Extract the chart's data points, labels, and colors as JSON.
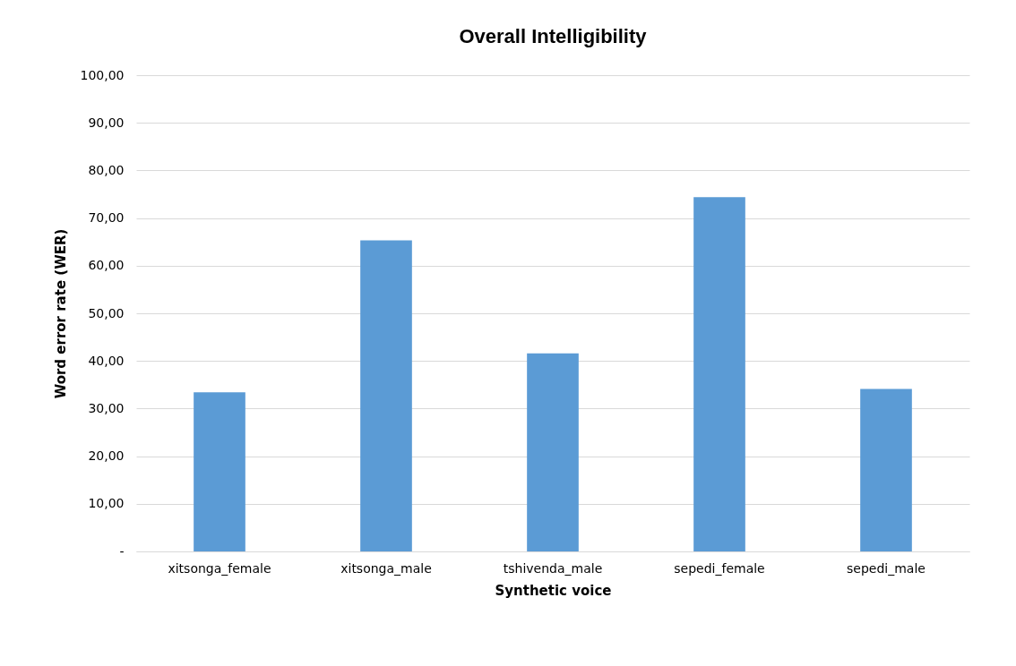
{
  "chart_data": {
    "type": "bar",
    "title": "Overall Intelligibility",
    "xlabel": "Synthetic voice",
    "ylabel": "Word error rate (WER)",
    "categories": [
      "xitsonga_female",
      "xitsonga_male",
      "tshivenda_male",
      "sepedi_female",
      "sepedi_male"
    ],
    "values": [
      33.4,
      65.3,
      41.6,
      74.4,
      34.1
    ],
    "color": "#5b9bd5",
    "ylim": [
      0,
      100
    ],
    "yticks": [
      {
        "value": 0,
        "label": "-"
      },
      {
        "value": 10,
        "label": "10,00"
      },
      {
        "value": 20,
        "label": "20,00"
      },
      {
        "value": 30,
        "label": "30,00"
      },
      {
        "value": 40,
        "label": "40,00"
      },
      {
        "value": 50,
        "label": "50,00"
      },
      {
        "value": 60,
        "label": "60,00"
      },
      {
        "value": 70,
        "label": "70,00"
      },
      {
        "value": 80,
        "label": "80,00"
      },
      {
        "value": 90,
        "label": "90,00"
      },
      {
        "value": 100,
        "label": "100,00"
      }
    ],
    "grid": "y"
  }
}
